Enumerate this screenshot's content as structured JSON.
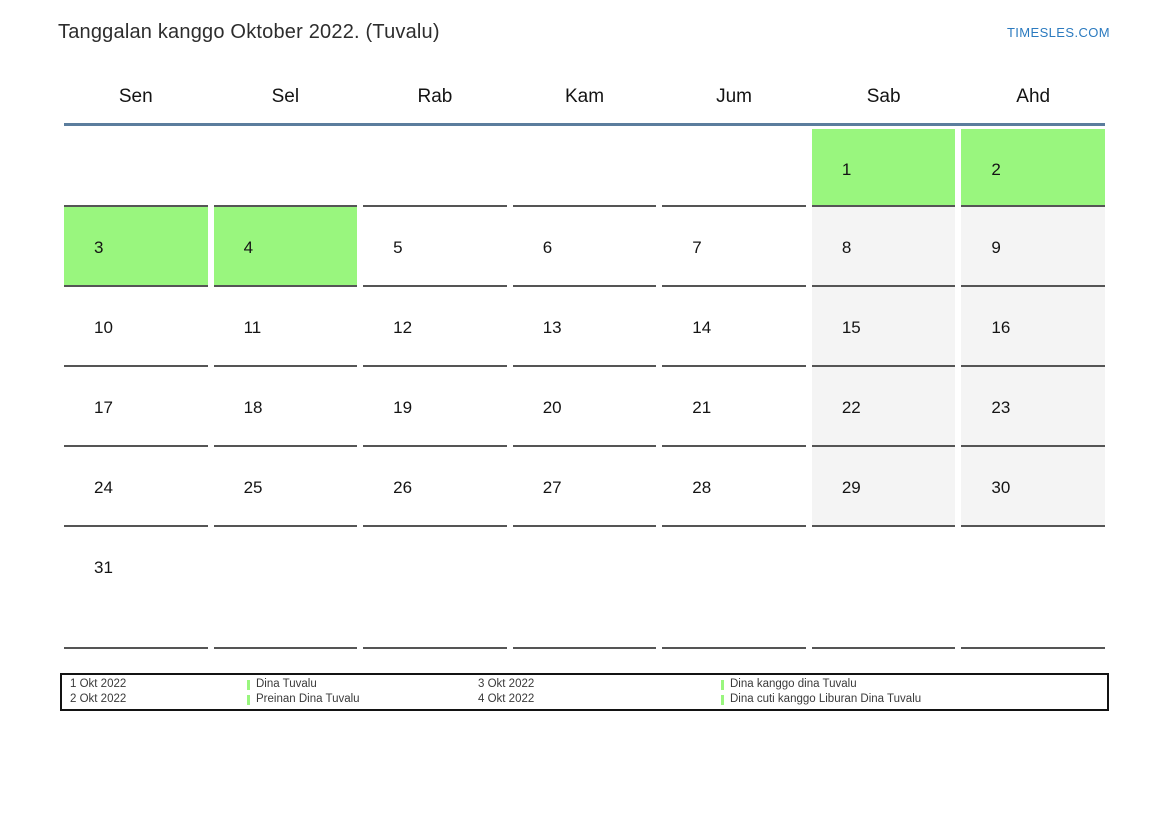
{
  "title": "Tanggalan kanggo Oktober 2022. (Tuvalu)",
  "brand": "TIMESLES.COM",
  "weekday_headers": [
    "Sen",
    "Sel",
    "Rab",
    "Kam",
    "Jum",
    "Sab",
    "Ahd"
  ],
  "weeks": [
    [
      {
        "label": "",
        "type": "empty"
      },
      {
        "label": "",
        "type": "empty"
      },
      {
        "label": "",
        "type": "empty"
      },
      {
        "label": "",
        "type": "empty"
      },
      {
        "label": "",
        "type": "empty"
      },
      {
        "label": "1",
        "type": "holiday"
      },
      {
        "label": "2",
        "type": "holiday"
      }
    ],
    [
      {
        "label": "3",
        "type": "holiday"
      },
      {
        "label": "4",
        "type": "holiday"
      },
      {
        "label": "5",
        "type": "workday"
      },
      {
        "label": "6",
        "type": "workday"
      },
      {
        "label": "7",
        "type": "workday"
      },
      {
        "label": "8",
        "type": "weekend"
      },
      {
        "label": "9",
        "type": "weekend"
      }
    ],
    [
      {
        "label": "10",
        "type": "workday"
      },
      {
        "label": "11",
        "type": "workday"
      },
      {
        "label": "12",
        "type": "workday"
      },
      {
        "label": "13",
        "type": "workday"
      },
      {
        "label": "14",
        "type": "workday"
      },
      {
        "label": "15",
        "type": "weekend"
      },
      {
        "label": "16",
        "type": "weekend"
      }
    ],
    [
      {
        "label": "17",
        "type": "workday"
      },
      {
        "label": "18",
        "type": "workday"
      },
      {
        "label": "19",
        "type": "workday"
      },
      {
        "label": "20",
        "type": "workday"
      },
      {
        "label": "21",
        "type": "workday"
      },
      {
        "label": "22",
        "type": "weekend"
      },
      {
        "label": "23",
        "type": "weekend"
      }
    ],
    [
      {
        "label": "24",
        "type": "workday"
      },
      {
        "label": "25",
        "type": "workday"
      },
      {
        "label": "26",
        "type": "workday"
      },
      {
        "label": "27",
        "type": "workday"
      },
      {
        "label": "28",
        "type": "workday"
      },
      {
        "label": "29",
        "type": "weekend"
      },
      {
        "label": "30",
        "type": "weekend"
      }
    ],
    [
      {
        "label": "31",
        "type": "workday"
      },
      {
        "label": "",
        "type": "empty"
      },
      {
        "label": "",
        "type": "empty"
      },
      {
        "label": "",
        "type": "empty"
      },
      {
        "label": "",
        "type": "empty"
      },
      {
        "label": "",
        "type": "empty"
      },
      {
        "label": "",
        "type": "empty"
      }
    ]
  ],
  "legend": {
    "entries": [
      {
        "date": "1 Okt 2022",
        "label": "Dina Tuvalu"
      },
      {
        "date": "2 Okt 2022",
        "label": "Preinan Dina Tuvalu"
      },
      {
        "date": "3 Okt 2022",
        "label": "Dina kanggo dina Tuvalu"
      },
      {
        "date": "4 Okt 2022",
        "label": "Dina cuti kanggo Liburan Dina Tuvalu"
      }
    ]
  },
  "colors": {
    "holiday_green": "#99f67e",
    "weekend_gray": "#f4f4f4",
    "header_line_blue": "#5b7d9d",
    "cell_line_gray": "#555555",
    "brand_blue": "#2b7abf"
  }
}
